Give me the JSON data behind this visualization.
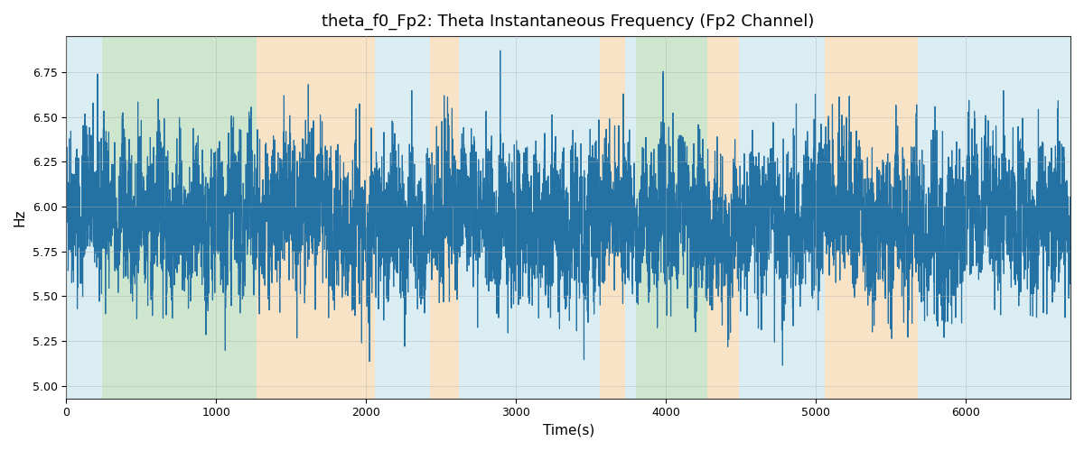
{
  "title": "theta_f0_Fp2: Theta Instantaneous Frequency (Fp2 Channel)",
  "xlabel": "Time(s)",
  "ylabel": "Hz",
  "xlim": [
    0,
    6700
  ],
  "ylim": [
    4.93,
    6.95
  ],
  "yticks": [
    5.0,
    5.25,
    5.5,
    5.75,
    6.0,
    6.25,
    6.5,
    6.75
  ],
  "line_color": "#2471a3",
  "line_width": 0.85,
  "bg_bands": [
    {
      "start": 0,
      "end": 240,
      "color": "#add8e6",
      "alpha": 0.45
    },
    {
      "start": 240,
      "end": 1270,
      "color": "#90c990",
      "alpha": 0.45
    },
    {
      "start": 1270,
      "end": 2060,
      "color": "#f5c990",
      "alpha": 0.5
    },
    {
      "start": 2060,
      "end": 2430,
      "color": "#add8e6",
      "alpha": 0.45
    },
    {
      "start": 2430,
      "end": 2620,
      "color": "#f5c990",
      "alpha": 0.5
    },
    {
      "start": 2620,
      "end": 3560,
      "color": "#add8e6",
      "alpha": 0.45
    },
    {
      "start": 3560,
      "end": 3730,
      "color": "#f5c990",
      "alpha": 0.5
    },
    {
      "start": 3730,
      "end": 3800,
      "color": "#add8e6",
      "alpha": 0.45
    },
    {
      "start": 3800,
      "end": 4280,
      "color": "#90c990",
      "alpha": 0.45
    },
    {
      "start": 4280,
      "end": 4490,
      "color": "#f5c990",
      "alpha": 0.5
    },
    {
      "start": 4490,
      "end": 5060,
      "color": "#add8e6",
      "alpha": 0.45
    },
    {
      "start": 5060,
      "end": 5680,
      "color": "#f5c990",
      "alpha": 0.5
    },
    {
      "start": 5680,
      "end": 6700,
      "color": "#add8e6",
      "alpha": 0.45
    }
  ],
  "seed": 42,
  "n_points": 6700,
  "freq_mean": 5.93,
  "freq_std": 0.25
}
